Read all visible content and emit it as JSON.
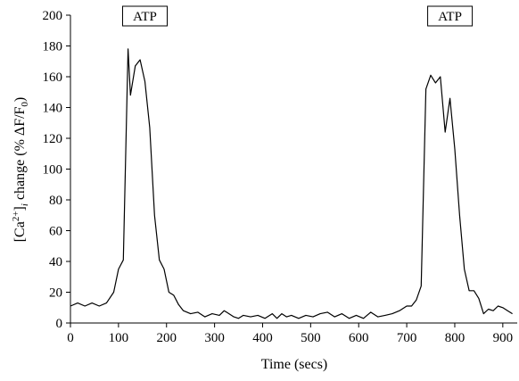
{
  "chart_data": {
    "type": "line",
    "title": "",
    "xlabel": "Time (secs)",
    "ylabel": {
      "prefix": "[Ca",
      "superscript": "2+",
      "mid": "]",
      "subscript": "i",
      "suffix": " change (% ΔF/F",
      "sub0": "0",
      "end": ")"
    },
    "xlim": [
      0,
      930
    ],
    "ylim": [
      0,
      200
    ],
    "x_ticks": [
      0,
      100,
      200,
      300,
      400,
      500,
      600,
      700,
      800,
      900
    ],
    "y_ticks": [
      0,
      20,
      40,
      60,
      80,
      100,
      120,
      140,
      160,
      180,
      200
    ],
    "grid": false,
    "annotations": [
      {
        "text": "ATP",
        "x": 155
      },
      {
        "text": "ATP",
        "x": 790
      }
    ],
    "series": [
      {
        "color": "#000000",
        "x": [
          0,
          15,
          30,
          45,
          60,
          75,
          90,
          100,
          110,
          120,
          125,
          135,
          145,
          155,
          165,
          175,
          185,
          195,
          205,
          215,
          225,
          235,
          250,
          265,
          280,
          295,
          310,
          320,
          330,
          340,
          350,
          360,
          375,
          390,
          405,
          420,
          430,
          440,
          450,
          460,
          475,
          490,
          505,
          520,
          535,
          550,
          565,
          580,
          595,
          610,
          625,
          640,
          655,
          670,
          685,
          700,
          710,
          720,
          730,
          740,
          750,
          760,
          770,
          780,
          790,
          800,
          810,
          820,
          830,
          840,
          850,
          860,
          870,
          880,
          890,
          900,
          910,
          920
        ],
        "y": [
          11,
          13,
          11,
          13,
          11,
          13,
          20,
          35,
          41,
          178,
          148,
          167,
          171,
          157,
          127,
          70,
          41,
          35,
          20,
          18,
          12,
          8,
          6,
          7,
          4,
          6,
          5,
          8,
          6,
          4,
          3,
          5,
          4,
          5,
          3,
          6,
          3,
          6,
          4,
          5,
          3,
          5,
          4,
          6,
          7,
          4,
          6,
          3,
          5,
          3,
          7,
          4,
          5,
          6,
          8,
          11,
          11,
          15,
          24,
          152,
          161,
          156,
          160,
          124,
          146,
          113,
          70,
          35,
          21,
          21,
          16,
          6,
          9,
          8,
          11,
          10,
          8,
          6
        ]
      }
    ]
  }
}
